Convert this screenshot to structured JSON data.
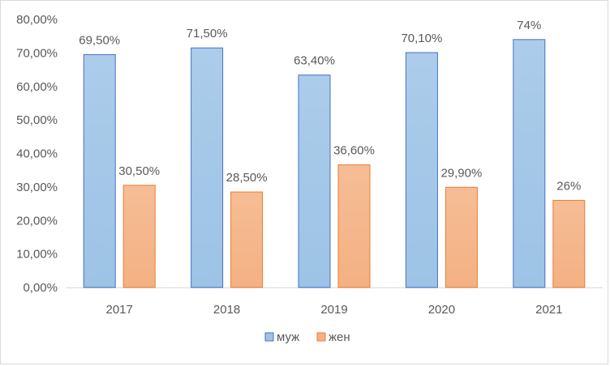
{
  "chart_data": {
    "type": "bar",
    "categories": [
      "2017",
      "2018",
      "2019",
      "2020",
      "2021"
    ],
    "series": [
      {
        "name": "муж",
        "values": [
          69.5,
          71.5,
          63.4,
          70.1,
          74
        ],
        "labels": [
          "69,50%",
          "71,50%",
          "63,40%",
          "70,10%",
          "74%"
        ],
        "color": "#9dc3e6",
        "border": "#4472c4"
      },
      {
        "name": "жен",
        "values": [
          30.5,
          28.5,
          36.6,
          29.9,
          26
        ],
        "labels": [
          "30,50%",
          "28,50%",
          "36,60%",
          "29,90%",
          "26%"
        ],
        "color": "#f4b183",
        "border": "#ed7d31"
      }
    ],
    "yticks": [
      "0,00%",
      "10,00%",
      "20,00%",
      "30,00%",
      "40,00%",
      "50,00%",
      "60,00%",
      "70,00%",
      "80,00%"
    ],
    "ylim": [
      0,
      80
    ],
    "grid": false,
    "legend_position": "bottom"
  }
}
